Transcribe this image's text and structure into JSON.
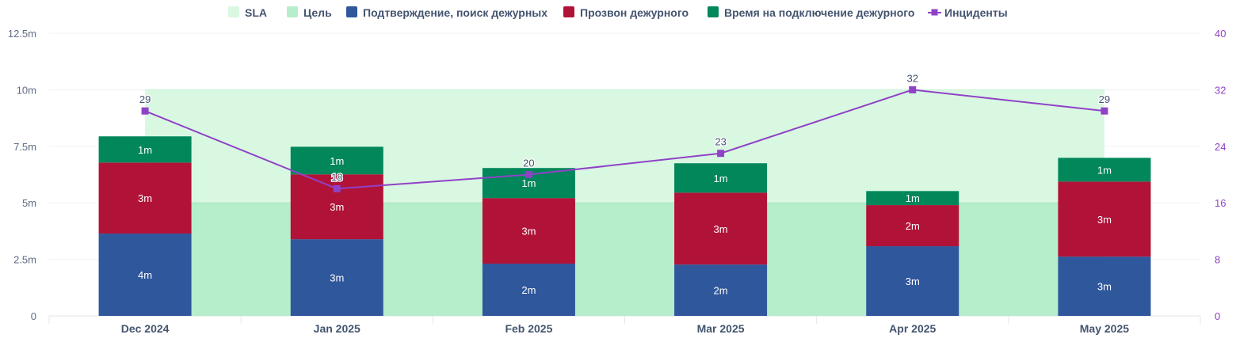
{
  "chart_data": {
    "type": "bar",
    "stacked": true,
    "categories": [
      "Dec 2024",
      "Jan 2025",
      "Feb 2025",
      "Mar 2025",
      "Apr 2025",
      "May 2025"
    ],
    "y_unit": "minutes",
    "ylim": [
      0,
      12.5
    ],
    "yticks": [
      0,
      2.5,
      5,
      7.5,
      10,
      12.5
    ],
    "ytick_labels": [
      "0",
      "2.5m",
      "5m",
      "7.5m",
      "10m",
      "12.5m"
    ],
    "y2lim": [
      0,
      40
    ],
    "y2ticks": [
      0,
      8,
      16,
      24,
      32,
      40
    ],
    "grid": true,
    "legend_position": "top",
    "areas": [
      {
        "name": "SLA",
        "value": 10,
        "color": "#d9f8e2"
      },
      {
        "name": "Цель",
        "value": 5,
        "color": "#b6edca"
      }
    ],
    "series": [
      {
        "name": "Подтверждение, поиск дежурных",
        "color": "#2f579c",
        "values": [
          3.64,
          3.39,
          2.31,
          2.27,
          3.08,
          2.62
        ],
        "labels": [
          "4m",
          "3m",
          "2m",
          "2m",
          "3m",
          "3m"
        ]
      },
      {
        "name": "Прозвон дежурного",
        "color": "#b11238",
        "values": [
          3.14,
          2.87,
          2.9,
          3.18,
          1.82,
          3.32
        ],
        "labels": [
          "3m",
          "3m",
          "3m",
          "3m",
          "2m",
          "3m"
        ]
      },
      {
        "name": "Время на подключение дежурного",
        "color": "#01875a",
        "values": [
          1.16,
          1.22,
          1.33,
          1.3,
          0.62,
          1.05
        ],
        "labels": [
          "1m",
          "1m",
          "1m",
          "1m",
          "1m",
          "1m"
        ]
      }
    ],
    "line": {
      "name": "Инциденты",
      "color": "#9042c6",
      "axis": "right",
      "values": [
        29,
        18,
        20,
        23,
        32,
        29
      ]
    }
  }
}
